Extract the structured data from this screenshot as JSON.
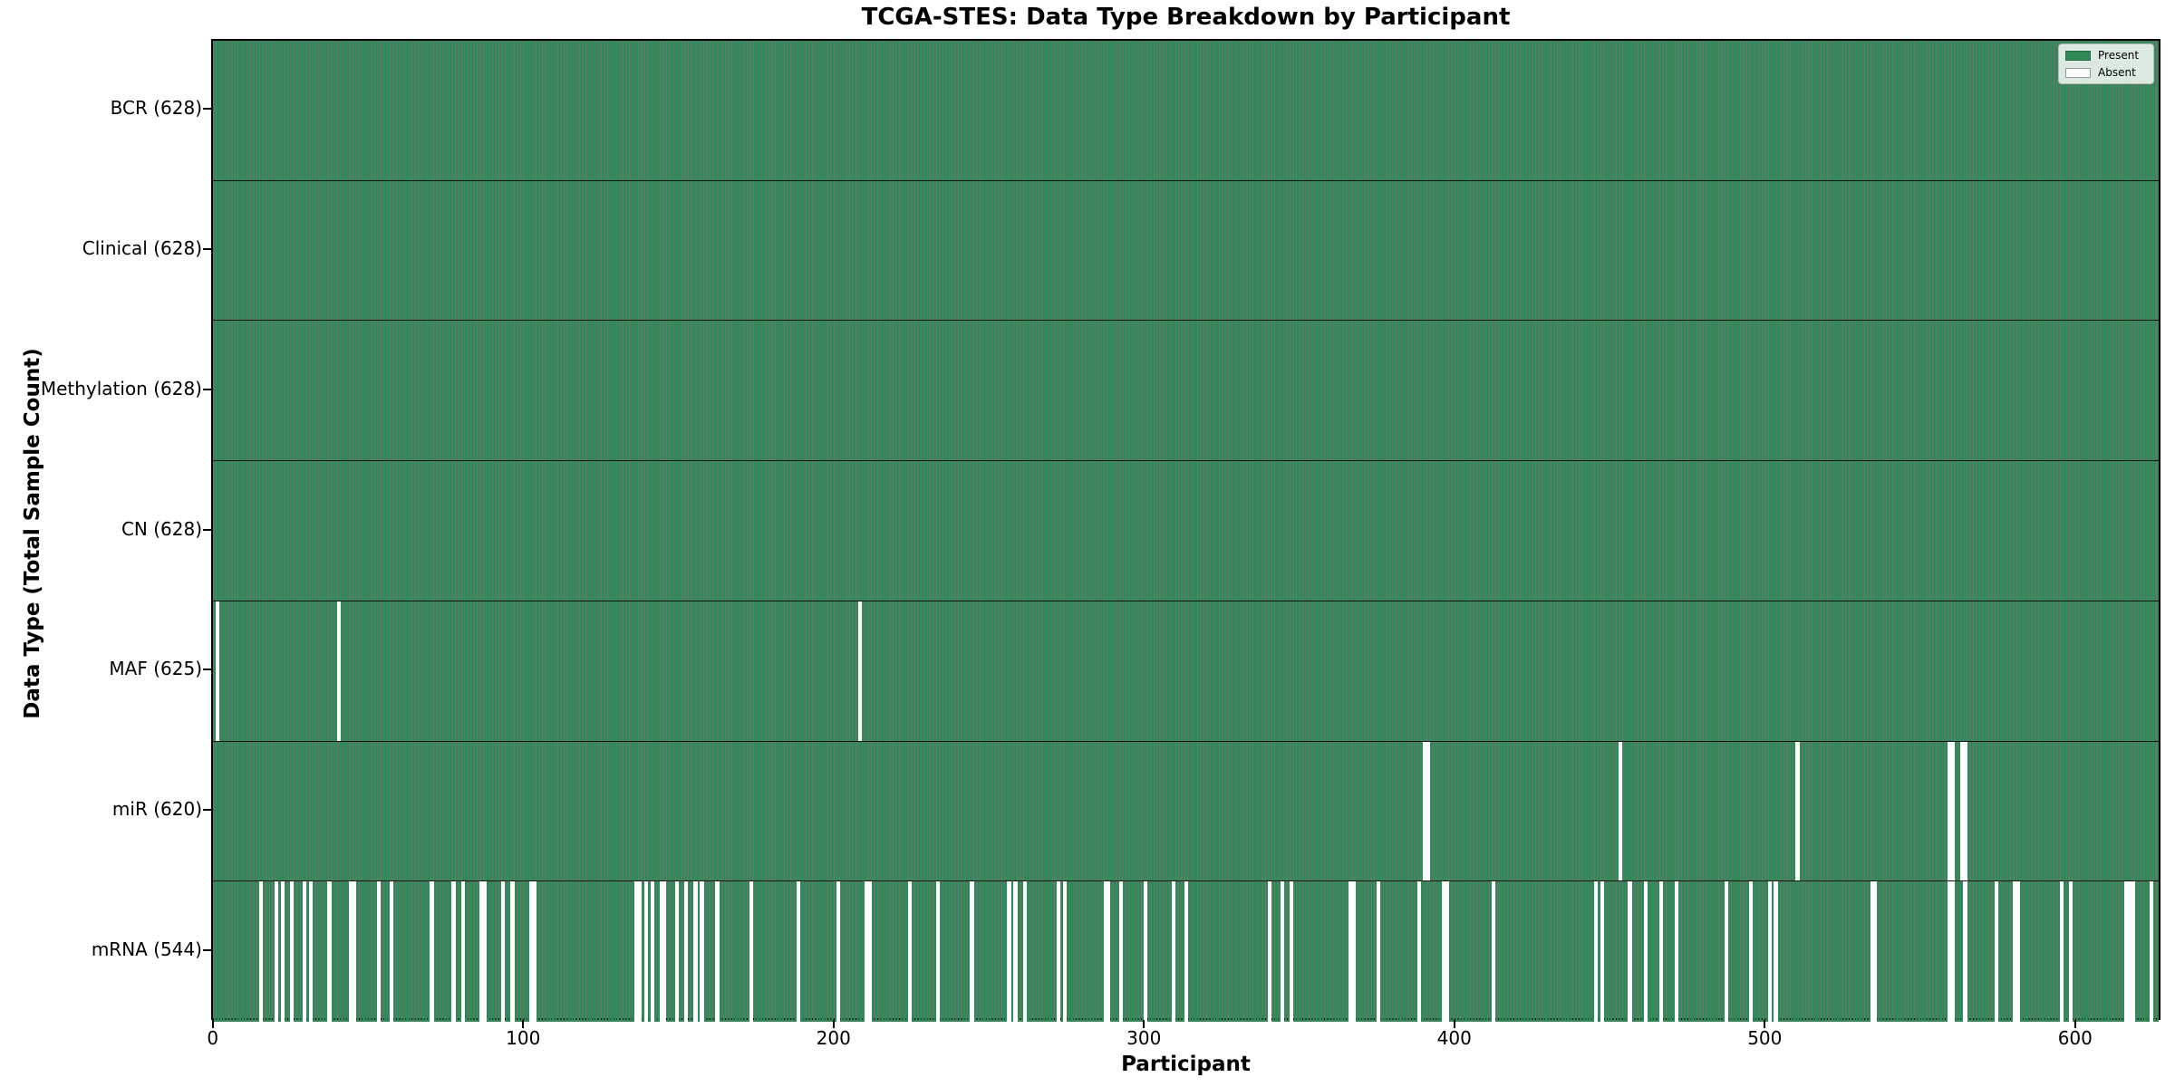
{
  "title": "TCGA-STES: Data Type Breakdown by Participant",
  "xlabel": "Participant",
  "ylabel": "Data Type (Total Sample Count)",
  "legend": {
    "present_label": "Present",
    "absent_label": "Absent"
  },
  "colors": {
    "present": "#2E8B57",
    "absent": "#ffffff",
    "bar_edge": "rgba(0,0,0,0.55)",
    "row_divider": "rgba(0,0,0,0.85)"
  },
  "chart_data": {
    "type": "heatmap",
    "title": "TCGA-STES: Data Type Breakdown by Participant",
    "xlabel": "Participant",
    "ylabel": "Data Type (Total Sample Count)",
    "legend_entries": [
      "Present",
      "Absent"
    ],
    "legend_position": "upper right",
    "n_participants": 628,
    "x_ticks": [
      0,
      100,
      200,
      300,
      400,
      500,
      600
    ],
    "rows": [
      {
        "label": "BCR (628)",
        "name": "BCR",
        "total": 628,
        "absent_participants": []
      },
      {
        "label": "Clinical (628)",
        "name": "Clinical",
        "total": 628,
        "absent_participants": []
      },
      {
        "label": "Methylation (628)",
        "name": "Methylation",
        "total": 628,
        "absent_participants": []
      },
      {
        "label": "CN (628)",
        "name": "CN",
        "total": 628,
        "absent_participants": []
      },
      {
        "label": "MAF (625)",
        "name": "MAF",
        "total": 625,
        "absent_participants": [
          1,
          40,
          208
        ]
      },
      {
        "label": "miR (620)",
        "name": "miR",
        "total": 620,
        "absent_participants": [
          390,
          391,
          453,
          510,
          559,
          560,
          563,
          564
        ]
      },
      {
        "label": "mRNA (544)",
        "name": "mRNA",
        "total": 544,
        "absent_participants": [
          15,
          20,
          22,
          25,
          29,
          31,
          37,
          44,
          45,
          53,
          57,
          70,
          77,
          80,
          86,
          87,
          93,
          96,
          102,
          103,
          136,
          137,
          139,
          141,
          144,
          145,
          149,
          152,
          155,
          157,
          162,
          173,
          188,
          201,
          210,
          211,
          224,
          233,
          244,
          256,
          258,
          261,
          272,
          274,
          287,
          288,
          292,
          300,
          309,
          313,
          340,
          344,
          347,
          366,
          367,
          375,
          388,
          396,
          397,
          412,
          445,
          447,
          456,
          461,
          466,
          471,
          487,
          495,
          501,
          503,
          534,
          535,
          559,
          560,
          564,
          574,
          580,
          581,
          595,
          598,
          616,
          617,
          618,
          624
        ]
      }
    ]
  }
}
